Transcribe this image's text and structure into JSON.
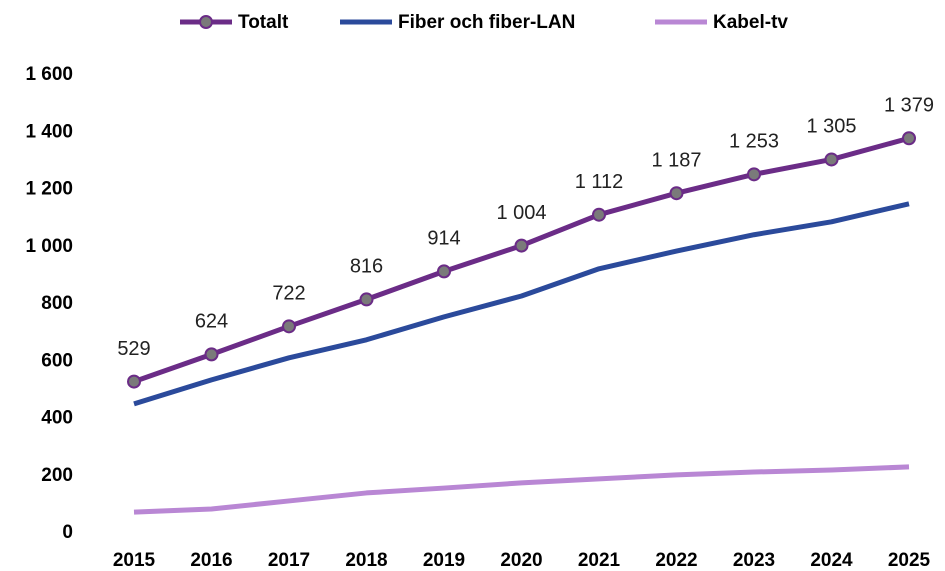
{
  "chart_data": {
    "type": "line",
    "categories": [
      "2015",
      "2016",
      "2017",
      "2018",
      "2019",
      "2020",
      "2021",
      "2022",
      "2023",
      "2024",
      "2025"
    ],
    "series": [
      {
        "name": "Totalt",
        "color": "#6b2c87",
        "marker_color": "#7a7a7a",
        "values": [
          529,
          624,
          722,
          816,
          914,
          1004,
          1112,
          1187,
          1253,
          1305,
          1379
        ],
        "value_labels": [
          "529",
          "624",
          "722",
          "816",
          "914",
          "1 004",
          "1 112",
          "1 187",
          "1 253",
          "1 305",
          "1 379"
        ]
      },
      {
        "name": "Fiber och fiber-LAN",
        "color": "#2b4a9b",
        "values": [
          451,
          535,
          612,
          675,
          755,
          828,
          923,
          985,
          1042,
          1087,
          1150
        ]
      },
      {
        "name": "Kabel-tv",
        "color": "#b987d4",
        "values": [
          73,
          84,
          112,
          140,
          157,
          175,
          189,
          203,
          213,
          220,
          231
        ]
      }
    ],
    "ylim": [
      0,
      1600
    ],
    "yticks": [
      0,
      200,
      400,
      600,
      800,
      {
        "value": 1000,
        "label": "1 000"
      },
      {
        "value": 1200,
        "label": "1 200"
      },
      {
        "value": 1400,
        "label": "1 400"
      },
      {
        "value": 1600,
        "label": "1 600"
      }
    ],
    "grid": false,
    "legend": "top"
  }
}
